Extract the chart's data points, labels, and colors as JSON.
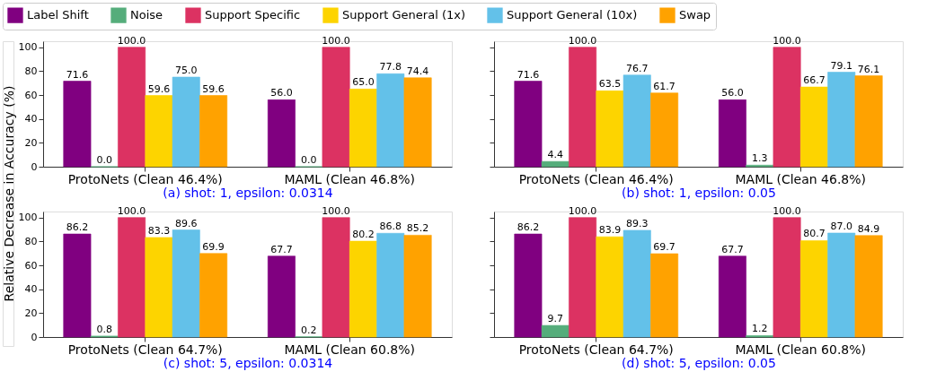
{
  "chart_data": [
    {
      "type": "bar",
      "categories": [
        "ProtoNets (Clean 46.4%)",
        "MAML (Clean 46.8%)"
      ],
      "xlabel": "(a) shot: 1, epsilon: 0.0314",
      "ylabel": "Relative Decrease in Accuracy (%)",
      "ylim": [
        0,
        105
      ],
      "yticks": [
        0,
        20,
        40,
        60,
        80,
        100
      ],
      "legend": "top",
      "data_labels": true,
      "grid": false,
      "series": [
        {
          "name": "Label Shift",
          "color": "#800080",
          "values": [
            71.6,
            56.0
          ],
          "value_labels": [
            "71.6",
            "56.0"
          ]
        },
        {
          "name": "Noise",
          "color": "#55ad7b",
          "values": [
            0.0,
            0.0
          ],
          "value_labels": [
            "0.0",
            "0.0"
          ]
        },
        {
          "name": "Support Specific",
          "color": "#dc3262",
          "values": [
            100.0,
            100.0
          ],
          "value_labels": [
            "100.0",
            "100.0"
          ]
        },
        {
          "name": "Support General (1x)",
          "color": "#fdd400",
          "values": [
            59.6,
            65.0
          ],
          "value_labels": [
            "59.6",
            "65.0"
          ]
        },
        {
          "name": "Support General (10x)",
          "color": "#63c1e9",
          "values": [
            75.0,
            77.8
          ],
          "value_labels": [
            "75.0",
            "77.8"
          ]
        },
        {
          "name": "Swap",
          "color": "#ffa200",
          "values": [
            59.6,
            74.4
          ],
          "value_labels": [
            "59.6",
            "74.4"
          ]
        }
      ]
    },
    {
      "type": "bar",
      "categories": [
        "ProtoNets (Clean 46.4%)",
        "MAML (Clean 46.8%)"
      ],
      "xlabel": "(b) shot: 1, epsilon: 0.05",
      "ylim": [
        0,
        105
      ],
      "yticks": [
        0,
        20,
        40,
        60,
        80,
        100
      ],
      "tick_labels": "x",
      "data_labels": true,
      "grid": false,
      "series": [
        {
          "name": "Label Shift",
          "color": "#800080",
          "values": [
            71.6,
            56.0
          ],
          "value_labels": [
            "71.6",
            "56.0"
          ]
        },
        {
          "name": "Noise",
          "color": "#55ad7b",
          "values": [
            4.4,
            1.3
          ],
          "value_labels": [
            "4.4",
            "1.3"
          ]
        },
        {
          "name": "Support Specific",
          "color": "#dc3262",
          "values": [
            100.0,
            100.0
          ],
          "value_labels": [
            "100.0",
            "100.0"
          ]
        },
        {
          "name": "Support General (1x)",
          "color": "#fdd400",
          "values": [
            63.5,
            66.7
          ],
          "value_labels": [
            "63.5",
            "66.7"
          ]
        },
        {
          "name": "Support General (10x)",
          "color": "#63c1e9",
          "values": [
            76.7,
            79.1
          ],
          "value_labels": [
            "76.7",
            "79.1"
          ]
        },
        {
          "name": "Swap",
          "color": "#ffa200",
          "values": [
            61.7,
            76.1
          ],
          "value_labels": [
            "61.7",
            "76.1"
          ]
        }
      ]
    },
    {
      "type": "bar",
      "categories": [
        "ProtoNets (Clean 64.7%)",
        "MAML (Clean 60.8%)"
      ],
      "xlabel": "(c) shot: 5, epsilon: 0.0314",
      "ylim": [
        0,
        105
      ],
      "yticks": [
        0,
        20,
        40,
        60,
        80,
        100
      ],
      "data_labels": true,
      "grid": false,
      "series": [
        {
          "name": "Label Shift",
          "color": "#800080",
          "values": [
            86.2,
            67.7
          ],
          "value_labels": [
            "86.2",
            "67.7"
          ]
        },
        {
          "name": "Noise",
          "color": "#55ad7b",
          "values": [
            0.8,
            0.2
          ],
          "value_labels": [
            "0.8",
            "0.2"
          ]
        },
        {
          "name": "Support Specific",
          "color": "#dc3262",
          "values": [
            100.0,
            100.0
          ],
          "value_labels": [
            "100.0",
            "100.0"
          ]
        },
        {
          "name": "Support General (1x)",
          "color": "#fdd400",
          "values": [
            83.3,
            80.2
          ],
          "value_labels": [
            "83.3",
            "80.2"
          ]
        },
        {
          "name": "Support General (10x)",
          "color": "#63c1e9",
          "values": [
            89.6,
            86.8
          ],
          "value_labels": [
            "89.6",
            "86.8"
          ]
        },
        {
          "name": "Swap",
          "color": "#ffa200",
          "values": [
            69.9,
            85.2
          ],
          "value_labels": [
            "69.9",
            "85.2"
          ]
        }
      ]
    },
    {
      "type": "bar",
      "categories": [
        "ProtoNets (Clean 64.7%)",
        "MAML (Clean 60.8%)"
      ],
      "xlabel": "(d) shot: 5, epsilon: 0.05",
      "ylim": [
        0,
        105
      ],
      "yticks": [
        0,
        20,
        40,
        60,
        80,
        100
      ],
      "tick_labels": "x",
      "data_labels": true,
      "grid": false,
      "series": [
        {
          "name": "Label Shift",
          "color": "#800080",
          "values": [
            86.2,
            67.7
          ],
          "value_labels": [
            "86.2",
            "67.7"
          ]
        },
        {
          "name": "Noise",
          "color": "#55ad7b",
          "values": [
            9.7,
            1.2
          ],
          "value_labels": [
            "9.7",
            "1.2"
          ]
        },
        {
          "name": "Support Specific",
          "color": "#dc3262",
          "values": [
            100.0,
            100.0
          ],
          "value_labels": [
            "100.0",
            "100.0"
          ]
        },
        {
          "name": "Support General (1x)",
          "color": "#fdd400",
          "values": [
            83.9,
            80.7
          ],
          "value_labels": [
            "83.9",
            "80.7"
          ]
        },
        {
          "name": "Support General (10x)",
          "color": "#63c1e9",
          "values": [
            89.3,
            87.0
          ],
          "value_labels": [
            "89.3",
            "87.0"
          ]
        },
        {
          "name": "Swap",
          "color": "#ffa200",
          "values": [
            69.7,
            84.9
          ],
          "value_labels": [
            "69.7",
            "84.9"
          ]
        }
      ]
    }
  ]
}
